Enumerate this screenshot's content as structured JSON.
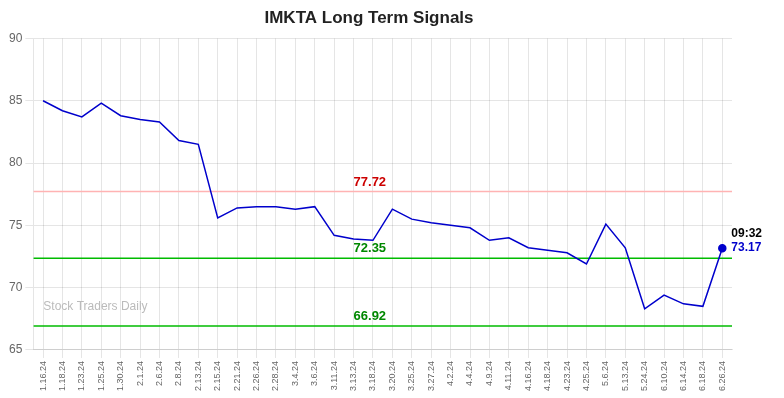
{
  "chart_data": {
    "type": "line",
    "title": "IMKTA Long Term Signals",
    "categories": [
      "1.16.24",
      "1.18.24",
      "1.23.24",
      "1.25.24",
      "1.30.24",
      "2.1.24",
      "2.6.24",
      "2.8.24",
      "2.13.24",
      "2.15.24",
      "2.21.24",
      "2.26.24",
      "2.28.24",
      "3.4.24",
      "3.6.24",
      "3.11.24",
      "3.13.24",
      "3.18.24",
      "3.20.24",
      "3.25.24",
      "3.27.24",
      "4.2.24",
      "4.4.24",
      "4.9.24",
      "4.11.24",
      "4.16.24",
      "4.18.24",
      "4.23.24",
      "4.25.24",
      "5.6.24",
      "5.13.24",
      "5.24.24",
      "6.10.24",
      "6.14.24",
      "6.18.24",
      "6.26.24"
    ],
    "values": [
      85.0,
      84.2,
      83.7,
      84.8,
      83.8,
      83.5,
      83.3,
      81.8,
      81.5,
      75.6,
      76.4,
      76.5,
      76.5,
      76.3,
      76.5,
      74.2,
      73.9,
      73.8,
      76.3,
      75.5,
      75.2,
      75.0,
      74.8,
      73.8,
      74.0,
      73.2,
      73.0,
      72.8,
      71.9,
      75.1,
      73.2,
      68.3,
      69.4,
      68.7,
      68.5,
      73.17
    ],
    "color": "#0000cc",
    "ylim": [
      65,
      90
    ],
    "yticks": [
      65,
      70,
      75,
      80,
      85,
      90
    ],
    "grid": true,
    "reference_lines": [
      {
        "value": 77.72,
        "label": "77.72",
        "color": "#ffb3b3",
        "label_color": "#cc0000",
        "label_x": "3.13.24"
      },
      {
        "value": 72.35,
        "label": "72.35",
        "color": "#00bb00",
        "label_color": "#008800",
        "label_x": "3.13.24"
      },
      {
        "value": 66.92,
        "label": "66.92",
        "color": "#00bb00",
        "label_color": "#008800",
        "label_x": "3.13.24"
      }
    ],
    "annotations": [
      {
        "text": "09:32",
        "x": "6.26.24",
        "y": 73.17,
        "color": "#000000"
      },
      {
        "text": "73.17",
        "x": "6.26.24",
        "y": 73.17,
        "color": "#0000cc"
      }
    ],
    "watermark": {
      "text": "Stock Traders Daily",
      "color": "#bbbbbb"
    }
  }
}
